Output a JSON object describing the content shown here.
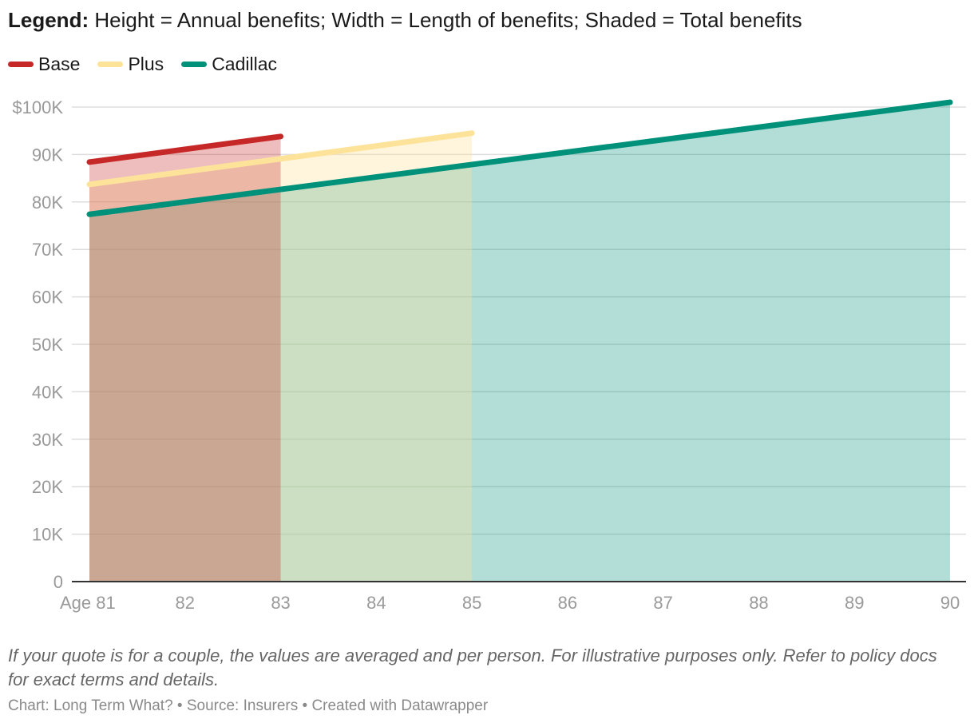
{
  "legend": {
    "label": "Legend:",
    "text": "Height = Annual benefits; Width = Length of benefits; Shaded = Total benefits"
  },
  "colors": {
    "Base": "#c62828",
    "Plus": "#fde39a",
    "Cadillac": "#00917a",
    "grid": "#dddddd",
    "axis": "#333333",
    "tick_text": "#9a9a9a"
  },
  "chart_data": {
    "type": "area",
    "title": "",
    "xlabel": "",
    "ylabel": "",
    "x_ticks": [
      "Age 81",
      "82",
      "83",
      "84",
      "85",
      "86",
      "87",
      "88",
      "89",
      "90"
    ],
    "x_range": [
      81,
      90
    ],
    "y_ticks": [
      "0",
      "10K",
      "20K",
      "30K",
      "40K",
      "50K",
      "60K",
      "70K",
      "80K",
      "90K",
      "$100K"
    ],
    "y_range": [
      0,
      100000
    ],
    "grid": true,
    "legend_position": "top-left",
    "series": [
      {
        "name": "Cadillac",
        "x": [
          81,
          90
        ],
        "values": [
          77400,
          101000
        ],
        "shade_opacity": 0.3
      },
      {
        "name": "Plus",
        "x": [
          81,
          85
        ],
        "values": [
          83700,
          94500
        ],
        "shade_opacity": 0.35
      },
      {
        "name": "Base",
        "x": [
          81,
          83
        ],
        "values": [
          88400,
          93800
        ],
        "shade_opacity": 0.3
      }
    ]
  },
  "footer": {
    "note": "If your quote is for a couple, the values are averaged and per person. For illustrative purposes only. Refer to policy docs for exact terms and details.",
    "credit": "Chart: Long Term What? • Source: Insurers • Created with Datawrapper"
  }
}
